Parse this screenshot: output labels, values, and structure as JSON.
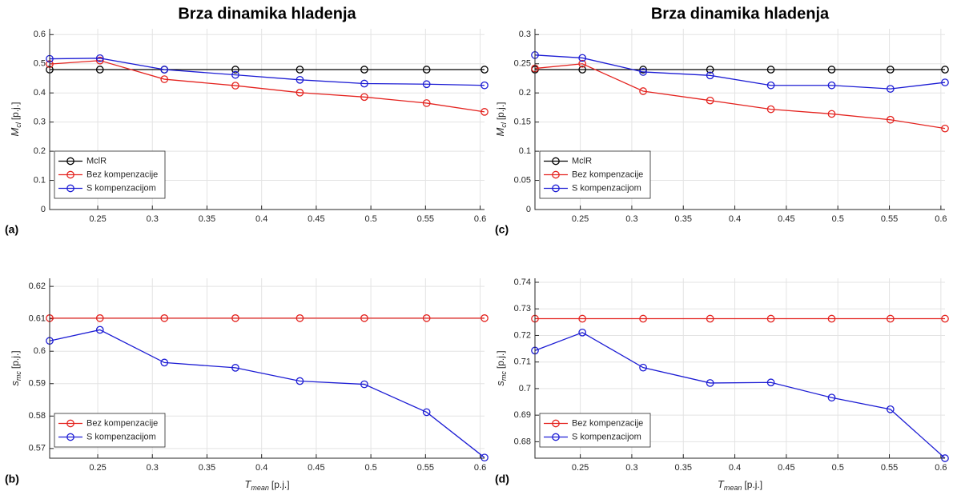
{
  "chart_data": [
    {
      "type": "line",
      "panel": "(a)",
      "title": "Brza dinamika hladenja",
      "ylabel": {
        "symbol": "M",
        "subscript": "cl",
        "unit": "[p.j.]"
      },
      "x": [
        0.206,
        0.252,
        0.311,
        0.376,
        0.435,
        0.494,
        0.551,
        0.604
      ],
      "xlim": [
        0.206,
        0.604
      ],
      "xticks": [
        0.25,
        0.3,
        0.35,
        0.4,
        0.45,
        0.5,
        0.55,
        0.6
      ],
      "ylim": [
        0,
        0.62
      ],
      "yticks": [
        0,
        0.1,
        0.2,
        0.3,
        0.4,
        0.5,
        0.6
      ],
      "grid": true,
      "legend": "lower-left",
      "series": [
        {
          "name": "MclR",
          "color": "#000000",
          "values": [
            0.48,
            0.48,
            0.48,
            0.48,
            0.48,
            0.48,
            0.48,
            0.48
          ]
        },
        {
          "name": "Bez kompenzacije",
          "color": "#e4231f",
          "values": [
            0.499,
            0.511,
            0.447,
            0.425,
            0.401,
            0.386,
            0.365,
            0.335
          ]
        },
        {
          "name": "S kompenzacijom",
          "color": "#1c1cd4",
          "values": [
            0.517,
            0.519,
            0.48,
            0.462,
            0.445,
            0.432,
            0.43,
            0.426
          ]
        }
      ]
    },
    {
      "type": "line",
      "panel": "(b)",
      "xlabel": {
        "symbol": "T",
        "subscript": "mean",
        "unit": "[p.j.]"
      },
      "ylabel": {
        "symbol": "s",
        "subscript": "mc",
        "unit": "[p.j.]"
      },
      "x": [
        0.206,
        0.252,
        0.311,
        0.376,
        0.435,
        0.494,
        0.551,
        0.604
      ],
      "xlim": [
        0.206,
        0.604
      ],
      "xticks": [
        0.25,
        0.3,
        0.35,
        0.4,
        0.45,
        0.5,
        0.55,
        0.6
      ],
      "ylim": [
        0.567,
        0.6225
      ],
      "yticks": [
        0.57,
        0.58,
        0.59,
        0.6,
        0.61,
        0.62
      ],
      "grid": true,
      "legend": "lower-left",
      "series": [
        {
          "name": "Bez kompenzacije",
          "color": "#e4231f",
          "values": [
            0.6102,
            0.6102,
            0.6102,
            0.6102,
            0.6102,
            0.6102,
            0.6102,
            0.6102
          ]
        },
        {
          "name": "S kompenzacijom",
          "color": "#1c1cd4",
          "values": [
            0.6032,
            0.6066,
            0.5965,
            0.5949,
            0.5908,
            0.5898,
            0.5812,
            0.5672
          ]
        }
      ]
    },
    {
      "type": "line",
      "panel": "(c)",
      "title": "Brza dinamika hladenja",
      "ylabel": {
        "symbol": "M",
        "subscript": "cl",
        "unit": "[p.j.]"
      },
      "x": [
        0.206,
        0.252,
        0.311,
        0.376,
        0.435,
        0.494,
        0.551,
        0.604
      ],
      "xlim": [
        0.206,
        0.604
      ],
      "xticks": [
        0.25,
        0.3,
        0.35,
        0.4,
        0.45,
        0.5,
        0.55,
        0.6
      ],
      "ylim": [
        0,
        0.31
      ],
      "yticks": [
        0,
        0.05,
        0.1,
        0.15,
        0.2,
        0.25,
        0.3
      ],
      "grid": true,
      "legend": "lower-left",
      "series": [
        {
          "name": "MclR",
          "color": "#000000",
          "values": [
            0.24,
            0.24,
            0.24,
            0.24,
            0.24,
            0.24,
            0.24,
            0.24
          ]
        },
        {
          "name": "Bez kompenzacije",
          "color": "#e4231f",
          "values": [
            0.242,
            0.25,
            0.203,
            0.187,
            0.172,
            0.164,
            0.154,
            0.139
          ]
        },
        {
          "name": "S kompenzacijom",
          "color": "#1c1cd4",
          "values": [
            0.265,
            0.26,
            0.236,
            0.23,
            0.213,
            0.213,
            0.207,
            0.218
          ]
        }
      ]
    },
    {
      "type": "line",
      "panel": "(d)",
      "xlabel": {
        "symbol": "T",
        "subscript": "mean",
        "unit": "[p.j.]"
      },
      "ylabel": {
        "symbol": "s",
        "subscript": "mc",
        "unit": "[p.j.]"
      },
      "x": [
        0.206,
        0.252,
        0.311,
        0.376,
        0.435,
        0.494,
        0.551,
        0.604
      ],
      "xlim": [
        0.206,
        0.604
      ],
      "xticks": [
        0.25,
        0.3,
        0.35,
        0.4,
        0.45,
        0.5,
        0.55,
        0.6
      ],
      "ylim": [
        0.6738,
        0.7415
      ],
      "yticks": [
        0.68,
        0.69,
        0.7,
        0.71,
        0.72,
        0.73,
        0.74
      ],
      "grid": true,
      "legend": "lower-left",
      "series": [
        {
          "name": "Bez kompenzacije",
          "color": "#e4231f",
          "values": [
            0.7263,
            0.7263,
            0.7263,
            0.7263,
            0.7263,
            0.7263,
            0.7263,
            0.7263
          ]
        },
        {
          "name": "S kompenzacijom",
          "color": "#1c1cd4",
          "values": [
            0.7143,
            0.7211,
            0.7079,
            0.7021,
            0.7023,
            0.6966,
            0.6922,
            0.6738
          ]
        }
      ]
    }
  ]
}
